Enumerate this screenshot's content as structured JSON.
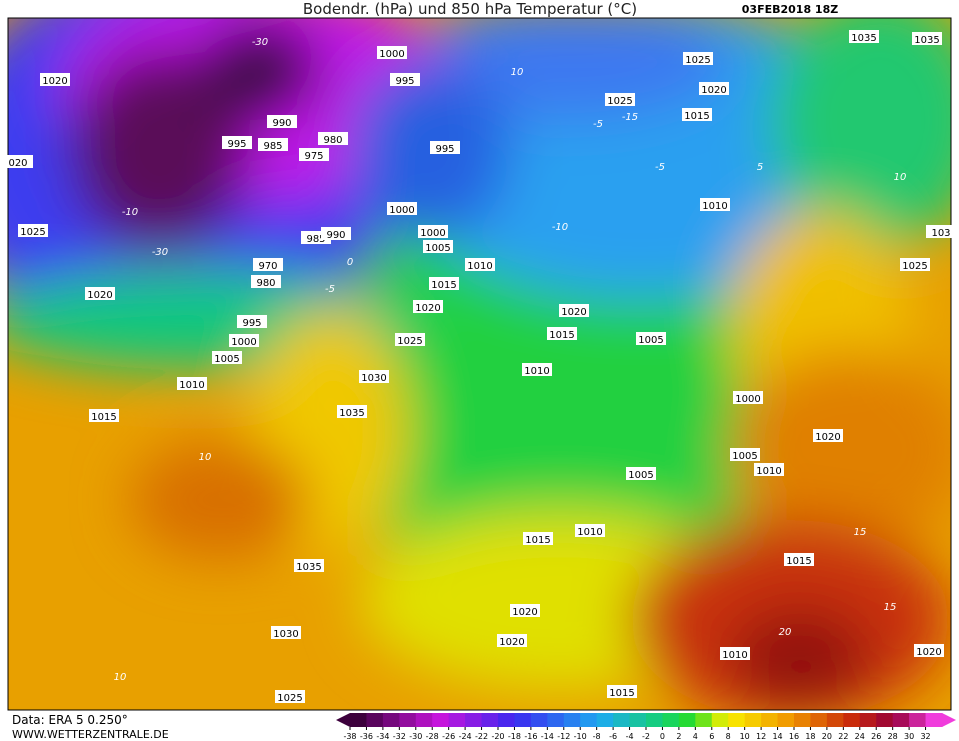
{
  "header": {
    "title": "Bodendr. (hPa) und 850 hPa Temperatur (°C)",
    "date": "03FEB2018 18Z"
  },
  "footer": {
    "data": "Data: ERA 5 0.250°",
    "site": "WWW.WETTERZENTRALE.DE"
  },
  "colorbar": {
    "ticks": [
      -38,
      -36,
      -34,
      -32,
      -30,
      -28,
      -26,
      -24,
      -22,
      -20,
      -18,
      -16,
      -14,
      -12,
      -10,
      -8,
      -6,
      -4,
      -2,
      0,
      2,
      4,
      6,
      8,
      10,
      12,
      14,
      16,
      18,
      20,
      22,
      24,
      26,
      28,
      30,
      32
    ]
  },
  "isobar_labels": [
    "1020",
    "1000",
    "995",
    "990",
    "985",
    "995",
    "980",
    "975",
    "995",
    "1000",
    "985",
    "990",
    "970",
    "980",
    "1000",
    "1005",
    "1010",
    "1015",
    "1020",
    "1025",
    "1030",
    "1035",
    "1025",
    "1020",
    "995",
    "1000",
    "1005",
    "1010",
    "1015",
    "1035",
    "1030",
    "1025",
    "1025",
    "1020",
    "1025",
    "1015",
    "1010",
    "1035",
    "1035",
    "1025",
    "1020",
    "1015",
    "1005",
    "1010",
    "1000",
    "1020",
    "1005",
    "1010",
    "1005",
    "1010",
    "1015",
    "1015",
    "1020",
    "1020",
    "1010",
    "1020",
    "1015",
    "020",
    "103"
  ],
  "isotherm_labels": [
    "10",
    "-5",
    "-15",
    "-30",
    "-30",
    "-10",
    "-5",
    "0",
    "-5",
    "10",
    "10",
    "15",
    "20",
    "15",
    "10",
    "5",
    "-10"
  ]
}
